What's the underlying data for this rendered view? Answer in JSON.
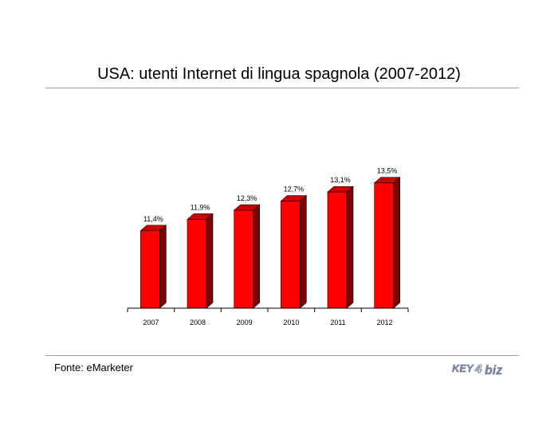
{
  "title": "USA: utenti Internet di lingua spagnola (2007-2012)",
  "source": "Fonte: eMarketer",
  "logo": {
    "text_left": "KEY",
    "text_mid": "4",
    "text_right": "biz"
  },
  "colors": {
    "bar_front": "#ff0000",
    "bar_side": "#800000",
    "bar_top": "#cc0000",
    "axis": "#000000"
  },
  "chart_data": {
    "type": "bar",
    "title": "USA: utenti Internet di lingua spagnola (2007-2012)",
    "categories": [
      "2007",
      "2008",
      "2009",
      "2010",
      "2011",
      "2012"
    ],
    "values": [
      11.4,
      11.9,
      12.3,
      12.7,
      13.1,
      13.5
    ],
    "labels": [
      "11,4%",
      "11,9%",
      "12,3%",
      "12,7%",
      "13,1%",
      "13,5%"
    ],
    "xlabel": "",
    "ylabel": "",
    "grid": false,
    "legend": "none"
  }
}
